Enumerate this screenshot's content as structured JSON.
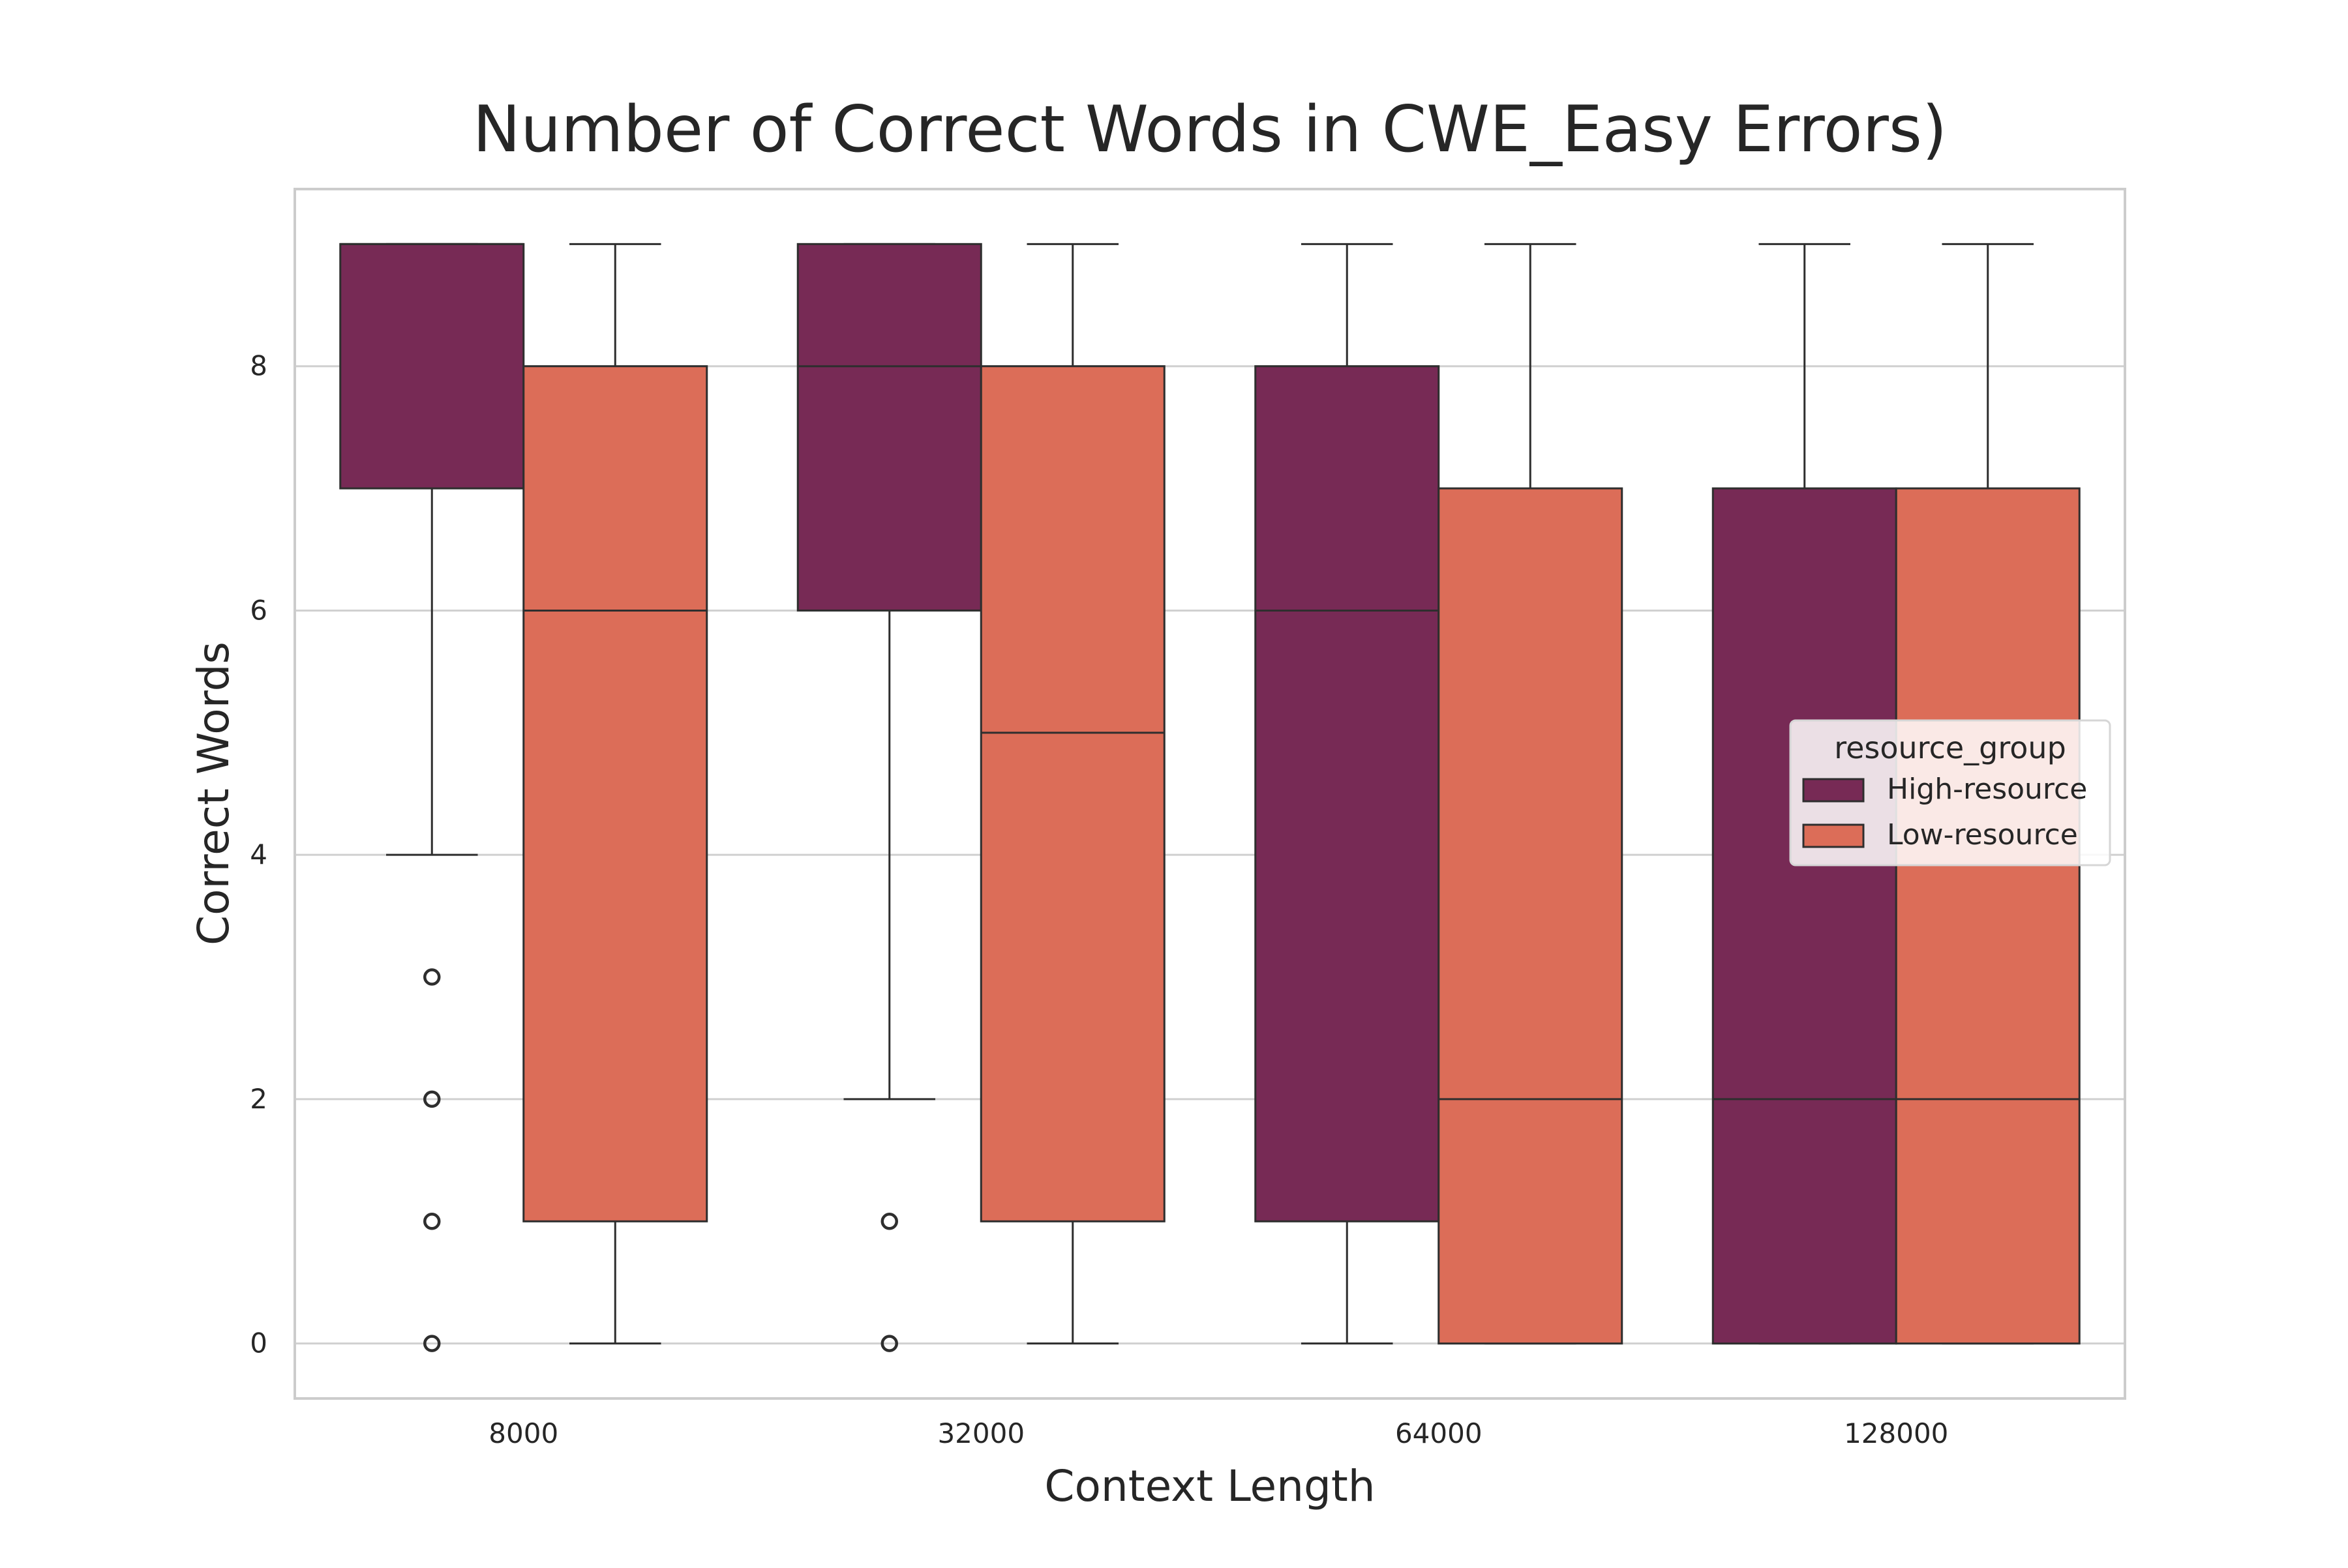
{
  "chart_data": {
    "type": "box",
    "title": "Number of Correct Words in CWE_Easy Errors)",
    "xlabel": "Context Length",
    "ylabel": "Correct Words",
    "categories": [
      "8000",
      "32000",
      "64000",
      "128000"
    ],
    "y_ticks": [
      0,
      2,
      4,
      6,
      8
    ],
    "ylim": [
      -0.45,
      9.45
    ],
    "grid": "horizontal",
    "legend": {
      "title": "resource_group",
      "position": "right",
      "entries": [
        "High-resource",
        "Low-resource"
      ]
    },
    "series": [
      {
        "name": "High-resource",
        "color": "#772a55",
        "boxes": [
          {
            "whisker_low": 4,
            "q1": 7,
            "median": 9,
            "q3": 9,
            "whisker_high": 9,
            "outliers": [
              3,
              2,
              1,
              0
            ]
          },
          {
            "whisker_low": 2,
            "q1": 6,
            "median": 8,
            "q3": 9,
            "whisker_high": 9,
            "outliers": [
              1,
              0
            ]
          },
          {
            "whisker_low": 0,
            "q1": 1,
            "median": 6,
            "q3": 8,
            "whisker_high": 9,
            "outliers": []
          },
          {
            "whisker_low": 0,
            "q1": 0,
            "median": 2,
            "q3": 7,
            "whisker_high": 9,
            "outliers": []
          }
        ]
      },
      {
        "name": "Low-resource",
        "color": "#dc6d58",
        "boxes": [
          {
            "whisker_low": 0,
            "q1": 1,
            "median": 6,
            "q3": 8,
            "whisker_high": 9,
            "outliers": []
          },
          {
            "whisker_low": 0,
            "q1": 1,
            "median": 5,
            "q3": 8,
            "whisker_high": 9,
            "outliers": []
          },
          {
            "whisker_low": 0,
            "q1": 0,
            "median": 2,
            "q3": 7,
            "whisker_high": 9,
            "outliers": []
          },
          {
            "whisker_low": 0,
            "q1": 0,
            "median": 2,
            "q3": 7,
            "whisker_high": 9,
            "outliers": []
          }
        ]
      }
    ],
    "colors": {
      "grid": "#d0d0d0",
      "frame": "#cccccc",
      "box_edge": "#2e2e2e",
      "background": "#ffffff"
    }
  }
}
